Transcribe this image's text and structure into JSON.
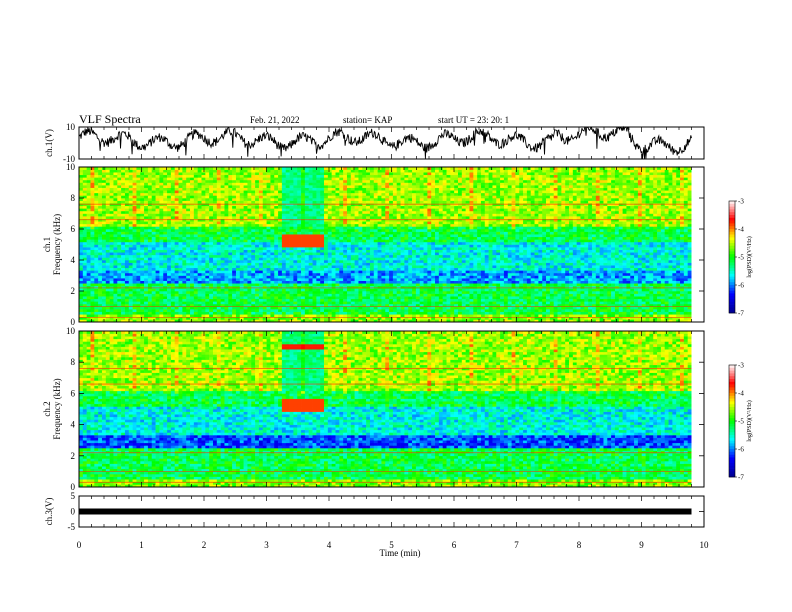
{
  "header": {
    "title": "VLF Spectra",
    "date": "Feb. 21, 2022",
    "station": "station= KAP",
    "start": "start UT = 23: 20: 1"
  },
  "chart_data": [
    {
      "panel": "ch1-waveform",
      "type": "line",
      "ylabel": "ch.1(V)",
      "ylim": [
        -10,
        10
      ],
      "y_ticks": [
        "10",
        "-10"
      ],
      "xlim": [
        0,
        10
      ],
      "color": "#000000",
      "data_end_min": 9.8,
      "trace": "noisy baseband signal oscillating roughly between -5 and +10 V"
    },
    {
      "panel": "ch1-spectrogram",
      "type": "heatmap",
      "ylabel_line1": "ch.1",
      "ylabel_line2": "Frequency (kHz)",
      "ylim": [
        0,
        10
      ],
      "y_ticks": [
        "0",
        "2",
        "4",
        "6",
        "8",
        "10"
      ],
      "xlim": [
        0,
        10
      ],
      "data_end_min": 9.8,
      "colorbar": {
        "range": [
          -7,
          -3
        ],
        "ticks": [
          "-3",
          "-4",
          "-5",
          "-6",
          "-7"
        ],
        "label": "log(PSD)(V²/Hz)",
        "colors": [
          "#00008f",
          "#0000ff",
          "#00ffff",
          "#00ff00",
          "#ffff00",
          "#ff0000",
          "#ffffff"
        ]
      }
    },
    {
      "panel": "ch2-spectrogram",
      "type": "heatmap",
      "ylabel_line1": "ch.2",
      "ylabel_line2": "Frequency (kHz)",
      "ylim": [
        0,
        10
      ],
      "y_ticks": [
        "0",
        "2",
        "4",
        "6",
        "8",
        "10"
      ],
      "xlim": [
        0,
        10
      ],
      "data_end_min": 9.8,
      "colorbar": {
        "range": [
          -7,
          -3
        ],
        "ticks": [
          "-3",
          "-4",
          "-5",
          "-6",
          "-7"
        ],
        "label": "log(PSD)(V²/Hz)",
        "colors": [
          "#00008f",
          "#0000ff",
          "#00ffff",
          "#00ff00",
          "#ffff00",
          "#ff0000",
          "#ffffff"
        ]
      }
    },
    {
      "panel": "ch3-waveform",
      "type": "line",
      "ylabel": "ch.3(V)",
      "ylim": [
        -5,
        5
      ],
      "y_ticks": [
        "5",
        "0",
        "-5"
      ],
      "xlim": [
        0,
        10
      ],
      "color": "#000000",
      "level_v": 0,
      "data_end_min": 9.8
    },
    {
      "panel": "time-axis",
      "xlabel": "Time (min)",
      "x_ticks": [
        "0",
        "1",
        "2",
        "3",
        "4",
        "5",
        "6",
        "7",
        "8",
        "9",
        "10"
      ]
    }
  ]
}
